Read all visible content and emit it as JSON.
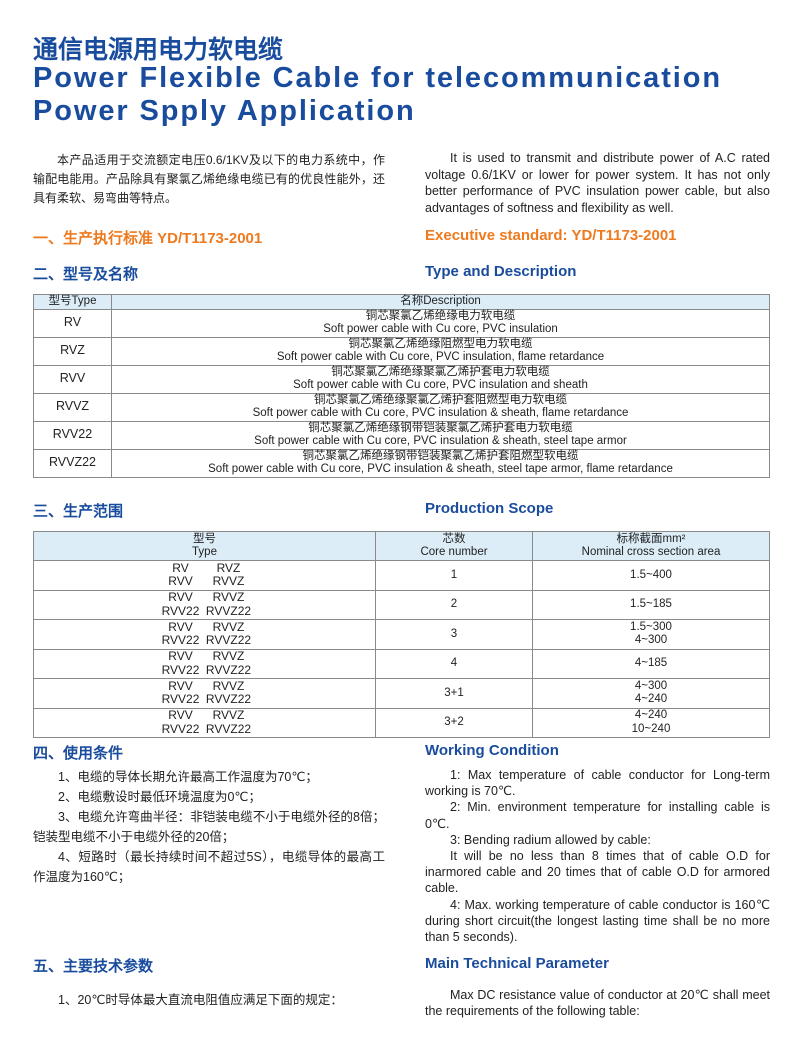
{
  "title": {
    "cn": "通信电源用电力软电缆",
    "en1": "Power Flexible Cable for telecommunication",
    "en2": "Power Spply Application"
  },
  "intro": {
    "cn": "本产品适用于交流额定电压0.6/1KV及以下的电力系统中，作输配电能用。产品除具有聚氯乙烯绝缘电缆已有的优良性能外，还具有柔软、易弯曲等特点。",
    "en": "It is used to transmit and distribute power of A.C rated voltage 0.6/1KV or lower for power system. It has not only better performance of PVC insulation power cable, but also advantages of softness and flexibility as well."
  },
  "sec1": {
    "cn": "一、生产执行标准  YD/T1173-2001",
    "en": "Executive standard: YD/T1173-2001"
  },
  "sec2": {
    "cn": "二、型号及名称",
    "en": "Type and Description"
  },
  "type_table": {
    "headers": [
      "型号Type",
      "名称Description"
    ],
    "rows": [
      {
        "type": "RV",
        "cn": "铜芯聚氯乙烯绝缘电力软电缆",
        "en": "Soft power cable with Cu core, PVC insulation"
      },
      {
        "type": "RVZ",
        "cn": "铜芯聚氯乙烯绝缘阻燃型电力软电缆",
        "en": "Soft power cable with Cu core, PVC insulation, flame retardance"
      },
      {
        "type": "RVV",
        "cn": "铜芯聚氯乙烯绝缘聚氯乙烯护套电力软电缆",
        "en": "Soft power cable with Cu core, PVC insulation and sheath"
      },
      {
        "type": "RVVZ",
        "cn": "铜芯聚氯乙烯绝缘聚氯乙烯护套阻燃型电力软电缆",
        "en": "Soft power cable with Cu core, PVC insulation & sheath, flame retardance"
      },
      {
        "type": "RVV22",
        "cn": "铜芯聚氯乙烯绝缘钢带铠装聚氯乙烯护套电力软电缆",
        "en": "Soft power cable with Cu core, PVC insulation & sheath, steel tape armor"
      },
      {
        "type": "RVVZ22",
        "cn": "铜芯聚氯乙烯绝缘钢带铠装聚氯乙烯护套阻燃型软电缆",
        "en": "Soft power cable with Cu core, PVC insulation & sheath, steel tape armor, flame retardance"
      }
    ]
  },
  "sec3": {
    "cn": "三、生产范围",
    "en": "Production Scope"
  },
  "scope_table": {
    "headers": {
      "type_cn": "型号",
      "type_en": "Type",
      "core_cn": "芯数",
      "core_en": "Core number",
      "area_cn": "标称截面mm²",
      "area_en": "Nominal cross section area"
    },
    "rows": [
      {
        "types": [
          "RV",
          "RVZ",
          "RVV",
          "RVVZ"
        ],
        "core": "1",
        "area": [
          "1.5~400",
          ""
        ]
      },
      {
        "types": [
          "RVV",
          "RVVZ",
          "RVV22",
          "RVVZ22"
        ],
        "core": "2",
        "area": [
          "1.5~185",
          ""
        ]
      },
      {
        "types": [
          "RVV",
          "RVVZ",
          "RVV22",
          "RVVZ22"
        ],
        "core": "3",
        "area": [
          "1.5~300",
          "4~300"
        ]
      },
      {
        "types": [
          "RVV",
          "RVVZ",
          "RVV22",
          "RVVZ22"
        ],
        "core": "4",
        "area": [
          "4~185",
          ""
        ]
      },
      {
        "types": [
          "RVV",
          "RVVZ",
          "RVV22",
          "RVVZ22"
        ],
        "core": "3+1",
        "area": [
          "4~300",
          "4~240"
        ]
      },
      {
        "types": [
          "RVV",
          "RVVZ",
          "RVV22",
          "RVVZ22"
        ],
        "core": "3+2",
        "area": [
          "4~240",
          "10~240"
        ]
      }
    ]
  },
  "sec4": {
    "cn": "四、使用条件",
    "en": "Working Condition",
    "cn_items": [
      "1、电缆的导体长期允许最高工作温度为70℃；",
      "2、电缆敷设时最低环境温度为0℃；",
      "3、电缆允许弯曲半径：非铠装电缆不小于电缆外径的8倍；铠装型电缆不小于电缆外径的20倍；",
      "4、短路时（最长持续时间不超过5S），电缆导体的最高工作温度为160℃；"
    ],
    "en_items": [
      "1: Max temperature of cable conductor for Long-term working is 70℃.",
      "2: Min. environment temperature for installing cable is 0℃.",
      "3: Bending radium allowed by cable:",
      "It will be no less than 8 times that of cable O.D for inarmored cable and 20 times that of cable O.D for armored cable.",
      "4: Max. working temperature of cable conductor is 160℃ during short circuit(the longest lasting time shall be no more than 5 seconds)."
    ]
  },
  "sec5": {
    "cn": "五、主要技术参数",
    "en": "Main Technical Parameter",
    "cn_text": "1、20℃时导体最大直流电阻值应满足下面的规定：",
    "en_text": "Max DC resistance value of conductor at 20℃ shall meet the requirements of the following table:"
  },
  "colors": {
    "blue": "#1a4c9e",
    "orange": "#ee7a1f",
    "table_header": "#dcedf8"
  }
}
